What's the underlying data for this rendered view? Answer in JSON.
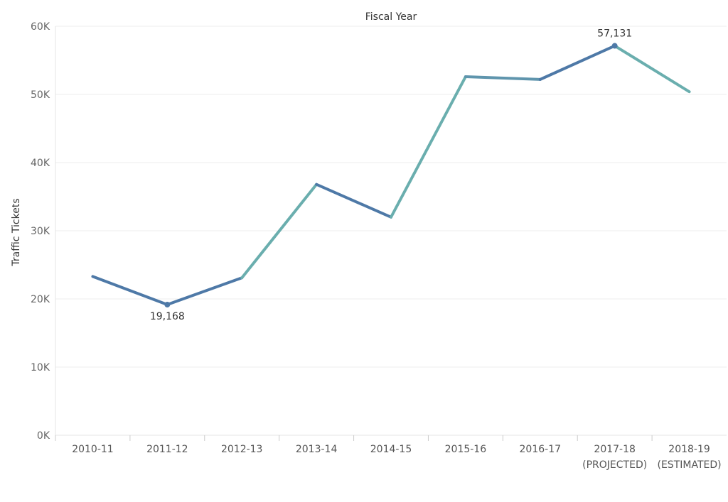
{
  "chart_data": {
    "type": "line",
    "title": "",
    "xlabel": "Fiscal Year",
    "ylabel": "Traffic Tickets",
    "categories": [
      [
        "2010-11"
      ],
      [
        "2011-12"
      ],
      [
        "2012-13"
      ],
      [
        "2013-14"
      ],
      [
        "2014-15"
      ],
      [
        "2015-16"
      ],
      [
        "2016-17"
      ],
      [
        "2017-18",
        "(PROJECTED)"
      ],
      [
        "2018-19",
        "(ESTIMATED)"
      ]
    ],
    "values": [
      23300,
      19168,
      23100,
      36800,
      32000,
      52600,
      52200,
      57131,
      50400
    ],
    "segment_colors": [
      "#4e79a7",
      "#4e79a7",
      "#6aaeae",
      "#4e79a7",
      "#6aaeae",
      "#5f95ad",
      "#4e79a7",
      "#6aaeae"
    ],
    "y_ticks": [
      0,
      10000,
      20000,
      30000,
      40000,
      50000,
      60000
    ],
    "y_tick_labels": [
      "0K",
      "10K",
      "20K",
      "30K",
      "40K",
      "50K",
      "60K"
    ],
    "ylim": [
      0,
      60000
    ],
    "grid": true,
    "legend": "none",
    "annotations": [
      {
        "index": 1,
        "text": "19,168",
        "position": "below"
      },
      {
        "index": 7,
        "text": "57,131",
        "position": "above"
      }
    ]
  }
}
